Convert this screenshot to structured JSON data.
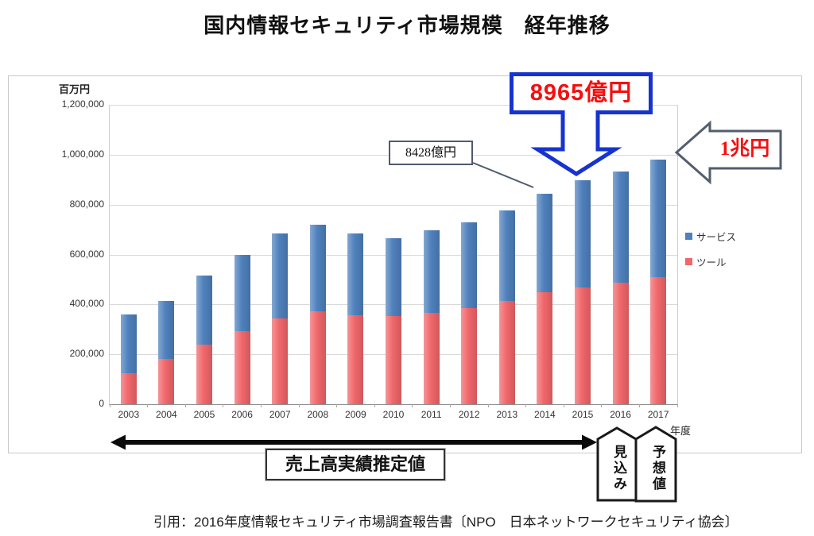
{
  "title": "国内情報セキュリティ市場規模　経年推移",
  "chart_data": {
    "type": "bar",
    "stacked": true,
    "title": "国内情報セキュリティ市場規模　経年推移",
    "unit_label": "百万円",
    "x_axis_label": "年度",
    "categories": [
      "2003",
      "2004",
      "2005",
      "2006",
      "2007",
      "2008",
      "2009",
      "2010",
      "2011",
      "2012",
      "2013",
      "2014",
      "2015",
      "2016",
      "2017"
    ],
    "series": [
      {
        "name": "サービス",
        "color": "#4f81bd",
        "values": [
          235000,
          232000,
          275000,
          305000,
          342000,
          350000,
          327000,
          311000,
          331000,
          344000,
          364000,
          394800,
          427500,
          446000,
          472000
        ]
      },
      {
        "name": "ツール",
        "color": "#f1676b",
        "values": [
          125000,
          182000,
          240000,
          293000,
          344000,
          371000,
          356000,
          353000,
          365000,
          385000,
          413000,
          448000,
          469000,
          487000,
          509000
        ]
      }
    ],
    "totals": [
      360000,
      414000,
      515000,
      598000,
      686000,
      721000,
      683000,
      664000,
      696000,
      729000,
      777000,
      842800,
      896500,
      933000,
      981000
    ],
    "ylim": [
      0,
      1200000
    ],
    "tick_step": 200000,
    "y_ticks": [
      "0",
      "200,000",
      "400,000",
      "600,000",
      "800,000",
      "1,000,000",
      "1,200,000"
    ],
    "grid": true,
    "legend_position": "right"
  },
  "annotations": {
    "callout_2015": "8965億円",
    "callout_2014": "8428億円",
    "callout_2017": "1兆円",
    "range_label": "売上高実績推定値",
    "estimate_label": "見込み",
    "forecast_label": "予想値"
  },
  "citation": "引用：2016年度情報セキュリティ市場調査報告書〔NPO　日本ネットワークセキュリティ協会〕",
  "colors": {
    "service_bar": "#4f81bd",
    "tool_bar": "#f1676b",
    "accent_blue": "#1733cf",
    "accent_red": "#f50f0f",
    "callout_border": "#525d6e",
    "gridline": "#d9d9d9"
  }
}
